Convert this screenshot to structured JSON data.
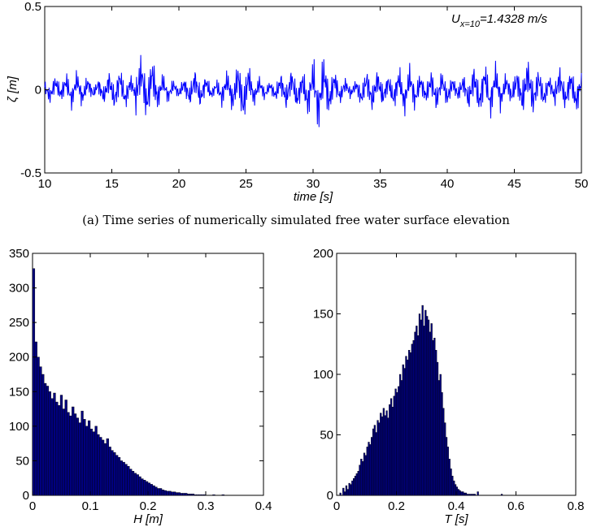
{
  "charts": {
    "timeseries": {
      "chart_data": {
        "type": "line",
        "ylabel": "ζ [m]",
        "xlabel": "time [s]",
        "xlim": [
          10,
          50
        ],
        "ylim": [
          -0.5,
          0.5
        ],
        "xticks": [
          10,
          15,
          20,
          25,
          30,
          35,
          40,
          45,
          50
        ],
        "yticks": [
          -0.5,
          0,
          0.5
        ],
        "ytick_labels": [
          "-0.5",
          "0",
          "0.5"
        ],
        "series": [
          {
            "color": "#0000ff",
            "x": [
              10,
              10.4,
              10.8,
              11.2,
              11.6,
              12,
              12.4,
              12.8,
              13.2,
              13.6,
              14,
              14.4,
              14.8,
              15.2,
              15.6,
              16,
              16.4,
              16.8,
              17.2,
              17.6,
              18,
              18.4,
              18.8,
              19.2,
              19.6,
              20,
              20.4,
              20.8,
              21.2,
              21.6,
              22,
              22.4,
              22.8,
              23.2,
              23.6,
              24,
              24.4,
              24.8,
              25.2,
              25.6,
              26,
              26.4,
              26.8,
              27.2,
              27.6,
              28,
              28.4,
              28.8,
              29.2,
              29.6,
              30,
              30.4,
              30.8,
              31.2,
              31.6,
              32,
              32.4,
              32.8,
              33.2,
              33.6,
              34,
              34.4,
              34.8,
              35.2,
              35.6,
              36,
              36.4,
              36.8,
              37.2,
              37.6,
              38,
              38.4,
              38.8,
              39.2,
              39.6,
              40,
              40.4,
              40.8,
              41.2,
              41.6,
              42,
              42.4,
              42.8,
              43.2,
              43.6,
              44,
              44.4,
              44.8,
              45.2,
              45.6,
              46,
              46.4,
              46.8,
              47.2,
              47.6,
              48,
              48.4,
              48.8,
              49.2,
              49.6,
              50
            ],
            "y": [
              0.03,
              -0.08,
              0.09,
              -0.06,
              0.1,
              -0.12,
              0.12,
              -0.1,
              0.08,
              -0.05,
              0.06,
              -0.09,
              0.11,
              -0.13,
              0.14,
              -0.12,
              0.09,
              -0.07,
              0.22,
              -0.18,
              0.2,
              -0.12,
              0.1,
              -0.08,
              0.06,
              -0.05,
              0.07,
              -0.1,
              0.13,
              -0.11,
              0.09,
              -0.06,
              0.05,
              -0.09,
              0.12,
              -0.14,
              0.16,
              -0.2,
              0.15,
              -0.1,
              0.08,
              -0.06,
              0.05,
              -0.07,
              0.1,
              -0.12,
              0.14,
              -0.13,
              0.1,
              -0.16,
              0.18,
              -0.25,
              0.2,
              -0.15,
              0.12,
              -0.09,
              0.07,
              -0.05,
              0.06,
              -0.1,
              0.12,
              -0.14,
              0.13,
              -0.1,
              0.09,
              -0.11,
              0.14,
              -0.16,
              0.15,
              -0.12,
              0.1,
              -0.08,
              0.11,
              -0.13,
              0.12,
              -0.1,
              0.08,
              -0.06,
              0.09,
              -0.12,
              0.15,
              -0.16,
              0.17,
              -0.18,
              0.16,
              -0.12,
              0.1,
              -0.08,
              0.12,
              -0.14,
              0.2,
              -0.15,
              0.13,
              -0.11,
              0.09,
              -0.08,
              0.14,
              -0.13,
              0.12,
              -0.15,
              0.1
            ]
          }
        ]
      },
      "annotation": {
        "main": "U",
        "sub": "x=10",
        "value": "=1.4328 m/s"
      }
    },
    "hist_h": {
      "chart_data": {
        "type": "bar",
        "xlabel": "H [m]",
        "ylabel": "",
        "xlim": [
          0,
          0.4
        ],
        "ylim": [
          0,
          350
        ],
        "xticks": [
          0,
          0.1,
          0.2,
          0.3,
          0.4
        ],
        "yticks": [
          0,
          50,
          100,
          150,
          200,
          250,
          300,
          350
        ],
        "bar_color": "#00007f",
        "bin_width": 0.004,
        "x": [
          0.002,
          0.006,
          0.01,
          0.014,
          0.018,
          0.022,
          0.026,
          0.03,
          0.034,
          0.038,
          0.042,
          0.046,
          0.05,
          0.054,
          0.058,
          0.062,
          0.066,
          0.07,
          0.074,
          0.078,
          0.082,
          0.086,
          0.09,
          0.094,
          0.098,
          0.102,
          0.106,
          0.11,
          0.114,
          0.118,
          0.122,
          0.126,
          0.13,
          0.134,
          0.138,
          0.142,
          0.146,
          0.15,
          0.154,
          0.158,
          0.162,
          0.166,
          0.17,
          0.174,
          0.178,
          0.182,
          0.186,
          0.19,
          0.194,
          0.198,
          0.202,
          0.206,
          0.21,
          0.214,
          0.218,
          0.222,
          0.226,
          0.23,
          0.234,
          0.238,
          0.242,
          0.246,
          0.25,
          0.254,
          0.258,
          0.262,
          0.266,
          0.27,
          0.274,
          0.278,
          0.282,
          0.286,
          0.29,
          0.294,
          0.298,
          0.302,
          0.306,
          0.31,
          0.314,
          0.318,
          0.322,
          0.326,
          0.33
        ],
        "values": [
          328,
          222,
          200,
          186,
          175,
          162,
          158,
          150,
          140,
          148,
          135,
          130,
          145,
          125,
          138,
          120,
          115,
          128,
          118,
          112,
          105,
          122,
          110,
          100,
          108,
          96,
          92,
          100,
          88,
          84,
          80,
          75,
          82,
          70,
          65,
          62,
          58,
          55,
          50,
          48,
          45,
          42,
          38,
          35,
          32,
          30,
          27,
          24,
          22,
          20,
          18,
          16,
          14,
          12,
          10,
          10,
          8,
          7,
          6,
          6,
          5,
          5,
          4,
          4,
          3,
          3,
          3,
          2,
          2,
          2,
          1,
          1,
          1,
          1,
          1,
          0,
          0,
          0,
          1,
          0,
          0,
          0,
          1
        ]
      }
    },
    "hist_t": {
      "chart_data": {
        "type": "bar",
        "xlabel": "T [s]",
        "ylabel": "",
        "xlim": [
          0,
          0.8
        ],
        "ylim": [
          0,
          200
        ],
        "xticks": [
          0,
          0.2,
          0.4,
          0.6,
          0.8
        ],
        "yticks": [
          0,
          50,
          100,
          150,
          200
        ],
        "bar_color": "#00007f",
        "bin_width": 0.005,
        "x": [
          0.0025,
          0.0075,
          0.0125,
          0.0175,
          0.0225,
          0.0275,
          0.0325,
          0.0375,
          0.0425,
          0.0475,
          0.0525,
          0.0575,
          0.0625,
          0.0675,
          0.0725,
          0.0775,
          0.0825,
          0.0875,
          0.0925,
          0.0975,
          0.1025,
          0.1075,
          0.1125,
          0.1175,
          0.1225,
          0.1275,
          0.1325,
          0.1375,
          0.1425,
          0.1475,
          0.1525,
          0.1575,
          0.1625,
          0.1675,
          0.1725,
          0.1775,
          0.1825,
          0.1875,
          0.1925,
          0.1975,
          0.2025,
          0.2075,
          0.2125,
          0.2175,
          0.2225,
          0.2275,
          0.2325,
          0.2375,
          0.2425,
          0.2475,
          0.2525,
          0.2575,
          0.2625,
          0.2675,
          0.2725,
          0.2775,
          0.2825,
          0.2875,
          0.2925,
          0.2975,
          0.3025,
          0.3075,
          0.3125,
          0.3175,
          0.3225,
          0.3275,
          0.3325,
          0.3375,
          0.3425,
          0.3475,
          0.3525,
          0.3575,
          0.3625,
          0.3675,
          0.3725,
          0.3775,
          0.3825,
          0.3875,
          0.3925,
          0.3975,
          0.4025,
          0.4075,
          0.4125,
          0.4175,
          0.4225,
          0.4275,
          0.4325,
          0.4375,
          0.4425,
          0.4475,
          0.4525,
          0.4575,
          0.4625,
          0.4675,
          0.4725,
          0.4775,
          0.4825,
          0.4875,
          0.4925,
          0.4975,
          0.5025,
          0.5075,
          0.5125,
          0.5175,
          0.5225,
          0.5275,
          0.5325,
          0.5375,
          0.5425,
          0.5475,
          0.5525
        ],
        "values": [
          0,
          0,
          2,
          0,
          6,
          3,
          8,
          5,
          10,
          9,
          12,
          14,
          16,
          18,
          20,
          25,
          30,
          28,
          35,
          33,
          40,
          44,
          42,
          48,
          55,
          58,
          52,
          62,
          60,
          68,
          65,
          72,
          66,
          70,
          64,
          75,
          80,
          73,
          82,
          88,
          85,
          90,
          100,
          95,
          108,
          105,
          115,
          112,
          120,
          118,
          125,
          128,
          135,
          140,
          132,
          150,
          145,
          157,
          140,
          153,
          148,
          145,
          135,
          142,
          128,
          130,
          120,
          110,
          95,
          100,
          85,
          72,
          60,
          48,
          40,
          30,
          22,
          16,
          12,
          9,
          7,
          5,
          4,
          3,
          3,
          2,
          2,
          1,
          1,
          1,
          1,
          1,
          1,
          0,
          3,
          0,
          0,
          0,
          0,
          0,
          0,
          0,
          0,
          0,
          0,
          0,
          0,
          0,
          0,
          0,
          1
        ]
      }
    }
  },
  "caption": "(a) Time series of numerically simulated free water surface elevation"
}
